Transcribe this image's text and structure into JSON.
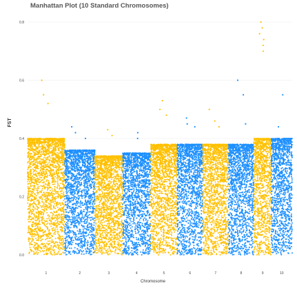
{
  "chart_data": {
    "type": "scatter",
    "subtype": "manhattan",
    "title": "Manhattan Plot (10 Standard Chromosomes)",
    "xlabel": "Chromosome",
    "ylabel": "FST",
    "ylim": [
      0,
      0.8
    ],
    "yticks": [
      "0.0",
      "0.2",
      "0.4",
      "0.6",
      "0.8"
    ],
    "ytick_values": [
      0.0,
      0.2,
      0.4,
      0.6,
      0.8
    ],
    "grid": true,
    "legend": "none",
    "colors": {
      "odd": "#FFC000",
      "even": "#1E90FF"
    },
    "chromosomes": [
      {
        "name": "1",
        "relative_length": 3.2,
        "typical_max": 0.4,
        "peaks": [
          0.6,
          0.55,
          0.52
        ]
      },
      {
        "name": "2",
        "relative_length": 2.6,
        "typical_max": 0.36,
        "peaks": [
          0.44,
          0.42,
          0.4
        ]
      },
      {
        "name": "3",
        "relative_length": 2.4,
        "typical_max": 0.34,
        "peaks": [
          0.43,
          0.41
        ]
      },
      {
        "name": "4",
        "relative_length": 2.4,
        "typical_max": 0.35,
        "peaks": [
          0.42,
          0.4
        ]
      },
      {
        "name": "5",
        "relative_length": 2.3,
        "typical_max": 0.38,
        "peaks": [
          0.53,
          0.5,
          0.48
        ]
      },
      {
        "name": "6",
        "relative_length": 2.2,
        "typical_max": 0.38,
        "peaks": [
          0.47,
          0.45,
          0.44
        ]
      },
      {
        "name": "7",
        "relative_length": 2.2,
        "typical_max": 0.38,
        "peaks": [
          0.5,
          0.46,
          0.44
        ]
      },
      {
        "name": "8",
        "relative_length": 2.2,
        "typical_max": 0.38,
        "peaks": [
          0.6,
          0.55,
          0.45
        ]
      },
      {
        "name": "9",
        "relative_length": 1.5,
        "typical_max": 0.4,
        "peaks": [
          0.8,
          0.78,
          0.76,
          0.74,
          0.72,
          0.7
        ]
      },
      {
        "name": "10",
        "relative_length": 1.8,
        "typical_max": 0.4,
        "peaks": [
          0.44,
          0.55
        ]
      }
    ]
  }
}
